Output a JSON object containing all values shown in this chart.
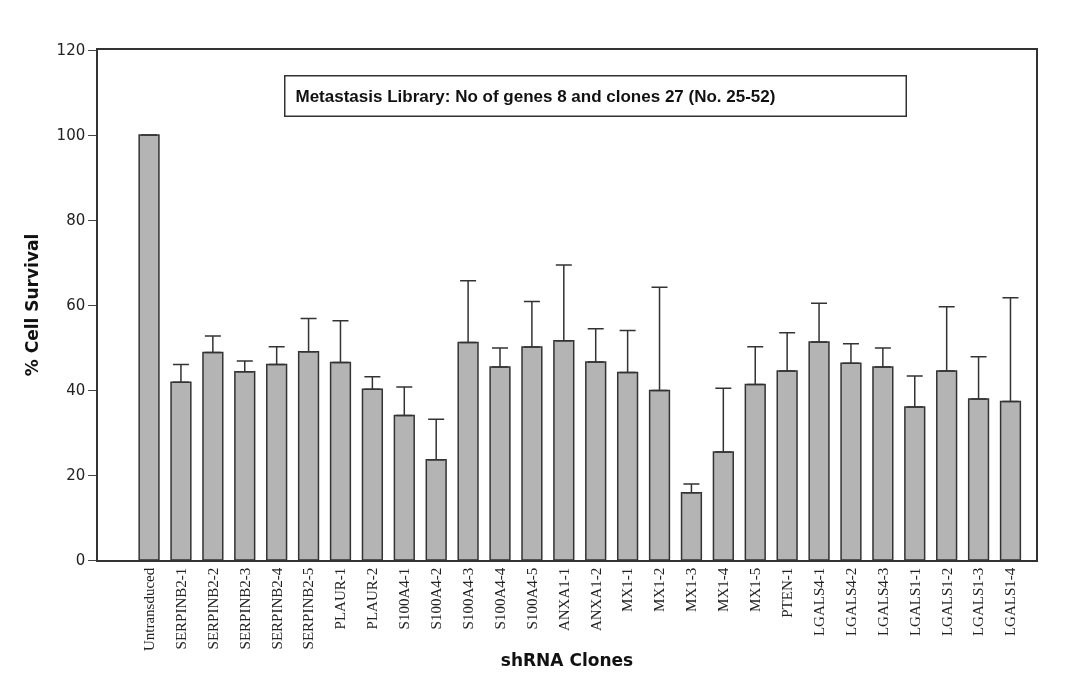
{
  "chart_data": {
    "type": "bar",
    "title": "Metastasis Library: No of genes 8 and clones 27 (No. 25-52)",
    "xlabel": "shRNA Clones",
    "ylabel": "% Cell Survival",
    "categories": [
      "Untransduced",
      "SERPINB2-1",
      "SERPINB2-2",
      "SERPINB2-3",
      "SERPINB2-4",
      "SERPINB2-5",
      "PLAUR-1",
      "PLAUR-2",
      "S100A4-1",
      "S100A4-2",
      "S100A4-3",
      "S100A4-4",
      "S100A4-5",
      "ANXA1-1",
      "ANXA1-2",
      "MX1-1",
      "MX1-2",
      "MX1-3",
      "MX1-4",
      "MX1-5",
      "PTEN-1",
      "LGALS4-1",
      "LGALS4-2",
      "LGALS4-3",
      "LGALS1-1",
      "LGALS1-2",
      "LGALS1-3",
      "LGALS1-4"
    ],
    "values": [
      100,
      41.8,
      48.8,
      44.3,
      46.0,
      49.0,
      46.5,
      40.2,
      34.0,
      23.6,
      51.2,
      45.4,
      50.1,
      51.6,
      46.6,
      44.1,
      39.9,
      15.8,
      25.4,
      41.3,
      44.5,
      51.3,
      46.3,
      45.4,
      36.0,
      44.5,
      37.9,
      37.3
    ],
    "errors": [
      null,
      [
        41.8,
        46.0
      ],
      [
        48.8,
        52.7
      ],
      [
        44.3,
        46.8
      ],
      [
        46.0,
        50.2
      ],
      [
        49.0,
        56.8
      ],
      [
        46.5,
        56.3
      ],
      [
        40.2,
        43.1
      ],
      [
        34.0,
        40.7
      ],
      [
        23.6,
        33.1
      ],
      [
        51.2,
        65.7
      ],
      [
        45.4,
        49.9
      ],
      [
        50.1,
        60.8
      ],
      [
        51.6,
        69.4
      ],
      [
        46.6,
        54.4
      ],
      [
        44.1,
        54.0
      ],
      [
        39.9,
        64.2
      ],
      [
        15.8,
        17.9
      ],
      [
        25.4,
        40.4
      ],
      [
        41.3,
        50.2
      ],
      [
        44.5,
        53.5
      ],
      [
        51.3,
        60.4
      ],
      [
        46.3,
        50.9
      ],
      [
        45.4,
        49.9
      ],
      [
        36.0,
        43.3
      ],
      [
        44.5,
        59.6
      ],
      [
        37.9,
        47.8
      ],
      [
        37.3,
        61.7
      ]
    ],
    "color": "#b4b4b4",
    "ylim": [
      0,
      120
    ],
    "yticks": [
      0,
      20,
      40,
      60,
      80,
      100,
      120
    ]
  }
}
